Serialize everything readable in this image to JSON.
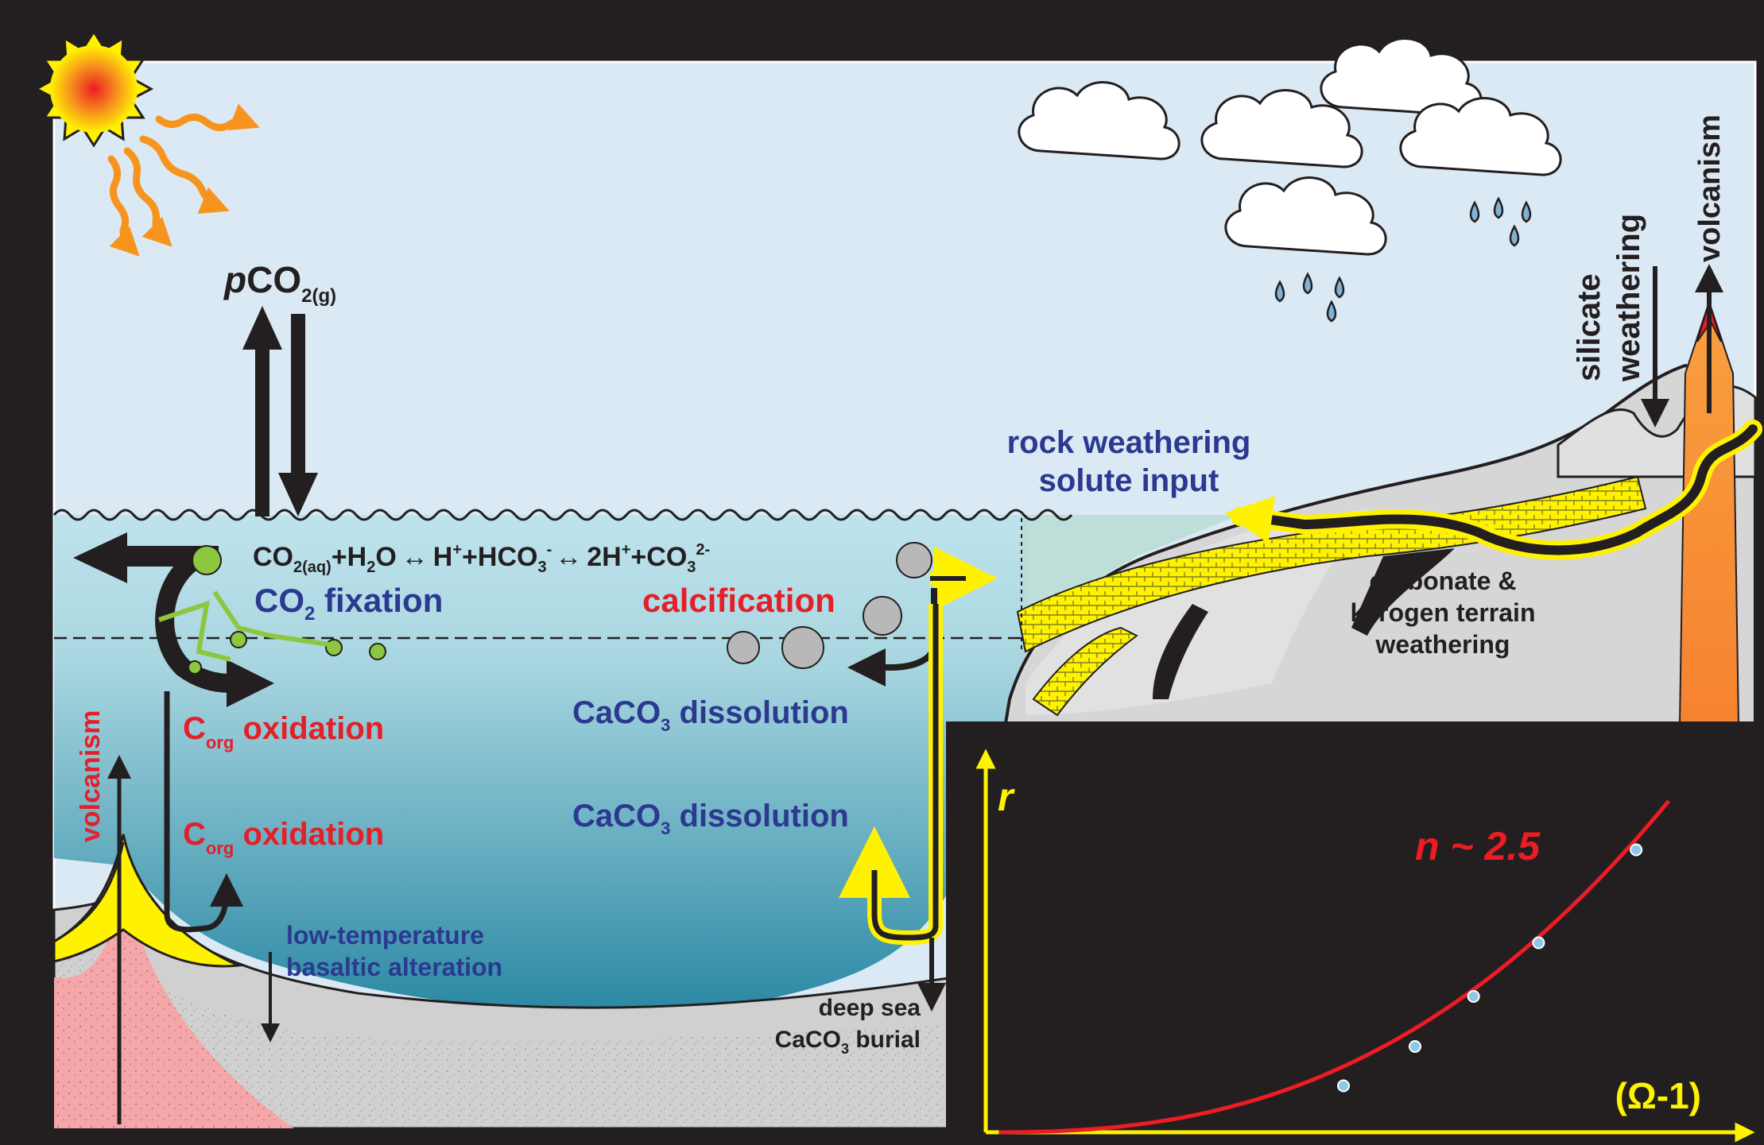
{
  "colors": {
    "sky": "#dbe9f4",
    "frame": "#231f20",
    "label_red": "#e3202a",
    "label_blue": "#2b3990",
    "arrow_yellow": "#fff200",
    "arrow_orange": "#f7941d",
    "volcano_orange": "#f7841f",
    "curve_red": "#ed1c24",
    "point_blue": "#8dc8e8"
  },
  "atmosphere": {
    "pco2": {
      "prefix": "p",
      "main": "CO",
      "sub": "2(g)"
    },
    "icons": [
      "sun-icon",
      "cloud-icon",
      "raindrop-icon"
    ]
  },
  "equation": {
    "co2": "CO",
    "co2_sub": "2(aq)",
    "h2o_a": "+H",
    "h2o_sub": "2",
    "h2o_b": "O",
    "arrow1": "↔",
    "h_plus": "H",
    "h_plus_sup": "+",
    "hco3": "+HCO",
    "hco3_sub": "3",
    "hco3_sup": "-",
    "arrow2": "↔",
    "two_h": "2H",
    "two_h_sup": "+",
    "co3": "+CO",
    "co3_sub": "3",
    "co3_sup": "2-"
  },
  "labels": {
    "co2_fixation_a": "CO",
    "co2_fixation_sub": "2",
    "co2_fixation_b": " fixation",
    "calcification": "calcification",
    "corg_oxidation_1_a": "C",
    "corg_oxidation_1_sub": "org",
    "corg_oxidation_1_b": " oxidation",
    "corg_oxidation_2_a": "C",
    "corg_oxidation_2_sub": "org",
    "corg_oxidation_2_b": " oxidation",
    "caco3_dissolution_1_a": "CaCO",
    "caco3_dissolution_1_sub": "3",
    "caco3_dissolution_1_b": " dissolution",
    "caco3_dissolution_2_a": "CaCO",
    "caco3_dissolution_2_sub": "3",
    "caco3_dissolution_2_b": " dissolution",
    "low_temp_line1": "low-temperature",
    "low_temp_line2": "basaltic alteration",
    "deep_sea_line1": "deep sea",
    "deep_sea_line2_a": "CaCO",
    "deep_sea_line2_sub": "3",
    "deep_sea_line2_b": " burial",
    "rock_weathering_line1": "rock weathering",
    "rock_weathering_line2": "solute input",
    "carbonate_line1": "carbonate &",
    "carbonate_line2": "kerogen terrain",
    "carbonate_line3": "weathering",
    "silicate_line1": "silicate",
    "silicate_line2": "weathering",
    "volcanism_land": "volcanism",
    "volcanism_sea": "volcanism"
  },
  "inset": {
    "y_label": "r",
    "x_label": "(Ω-1)",
    "fit_label": "n ~ 2.5"
  },
  "chart_data": {
    "type": "scatter",
    "title": "",
    "xlabel": "(Ω-1)",
    "ylabel": "r",
    "fit": {
      "label": "n ~ 2.5",
      "exponent": 2.5
    },
    "points": [
      {
        "x": 0.55,
        "y": 0.13
      },
      {
        "x": 0.66,
        "y": 0.24
      },
      {
        "x": 0.75,
        "y": 0.38
      },
      {
        "x": 0.85,
        "y": 0.53
      },
      {
        "x": 1.0,
        "y": 0.79
      }
    ],
    "xlim": [
      0,
      1.1
    ],
    "ylim": [
      0,
      1.0
    ],
    "grid": false
  }
}
